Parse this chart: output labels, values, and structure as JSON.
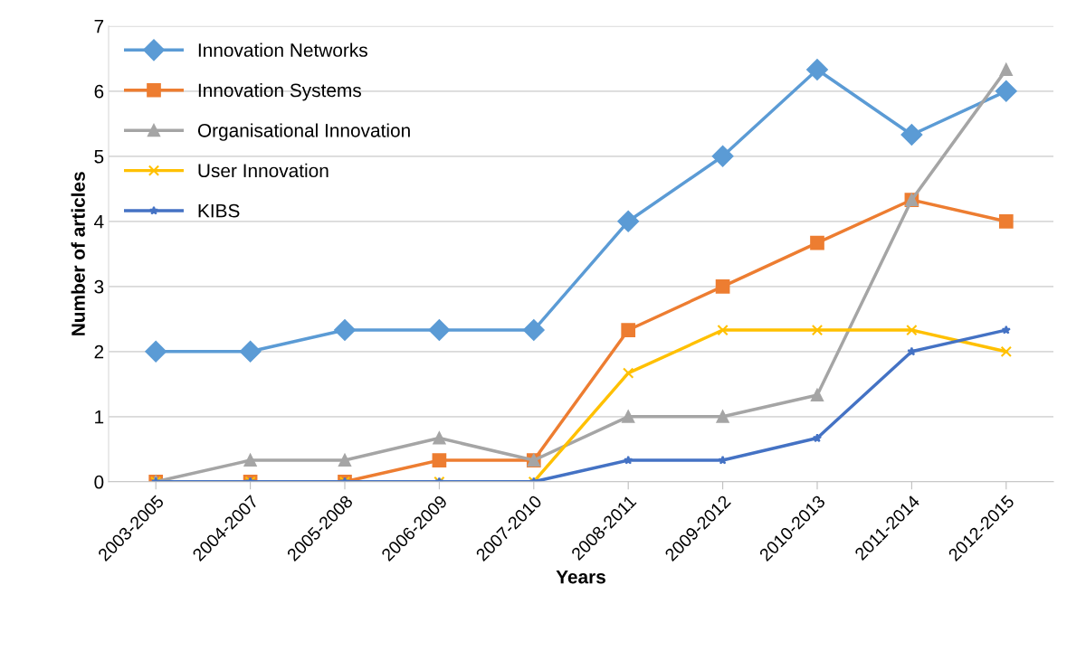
{
  "chart_data": {
    "type": "line",
    "xlabel": "Years",
    "ylabel": "Number of articles",
    "categories": [
      "2003-2005",
      "2004-2007",
      "2005-2008",
      "2006-2009",
      "2007-2010",
      "2008-2011",
      "2009-2012",
      "2010-2013",
      "2011-2014",
      "2012-2015"
    ],
    "series": [
      {
        "name": "Innovation Networks",
        "color": "#5b9bd5",
        "marker": "diamond",
        "values": [
          2,
          2,
          2.33,
          2.33,
          2.33,
          4,
          5,
          6.33,
          5.33,
          6
        ]
      },
      {
        "name": "Innovation Systems",
        "color": "#ed7d31",
        "marker": "square",
        "values": [
          0,
          0,
          0,
          0.33,
          0.33,
          2.33,
          3,
          3.67,
          4.33,
          4
        ]
      },
      {
        "name": "Organisational Innovation",
        "color": "#a5a5a5",
        "marker": "triangle",
        "values": [
          0,
          0.33,
          0.33,
          0.67,
          0.33,
          1,
          1,
          1.33,
          4.33,
          6.33
        ]
      },
      {
        "name": "User Innovation",
        "color": "#ffc000",
        "marker": "cross",
        "values": [
          0,
          0,
          0,
          0,
          0,
          1.67,
          2.33,
          2.33,
          2.33,
          2
        ]
      },
      {
        "name": "KIBS",
        "color": "#4472c4",
        "marker": "star",
        "values": [
          0,
          0,
          0,
          0,
          0,
          0.33,
          0.33,
          0.67,
          2,
          2.33
        ]
      }
    ],
    "ylim": [
      0,
      7
    ],
    "yticks": [
      0,
      1,
      2,
      3,
      4,
      5,
      6,
      7
    ],
    "grid": "y",
    "legend": "top left",
    "line_style": "solid"
  }
}
